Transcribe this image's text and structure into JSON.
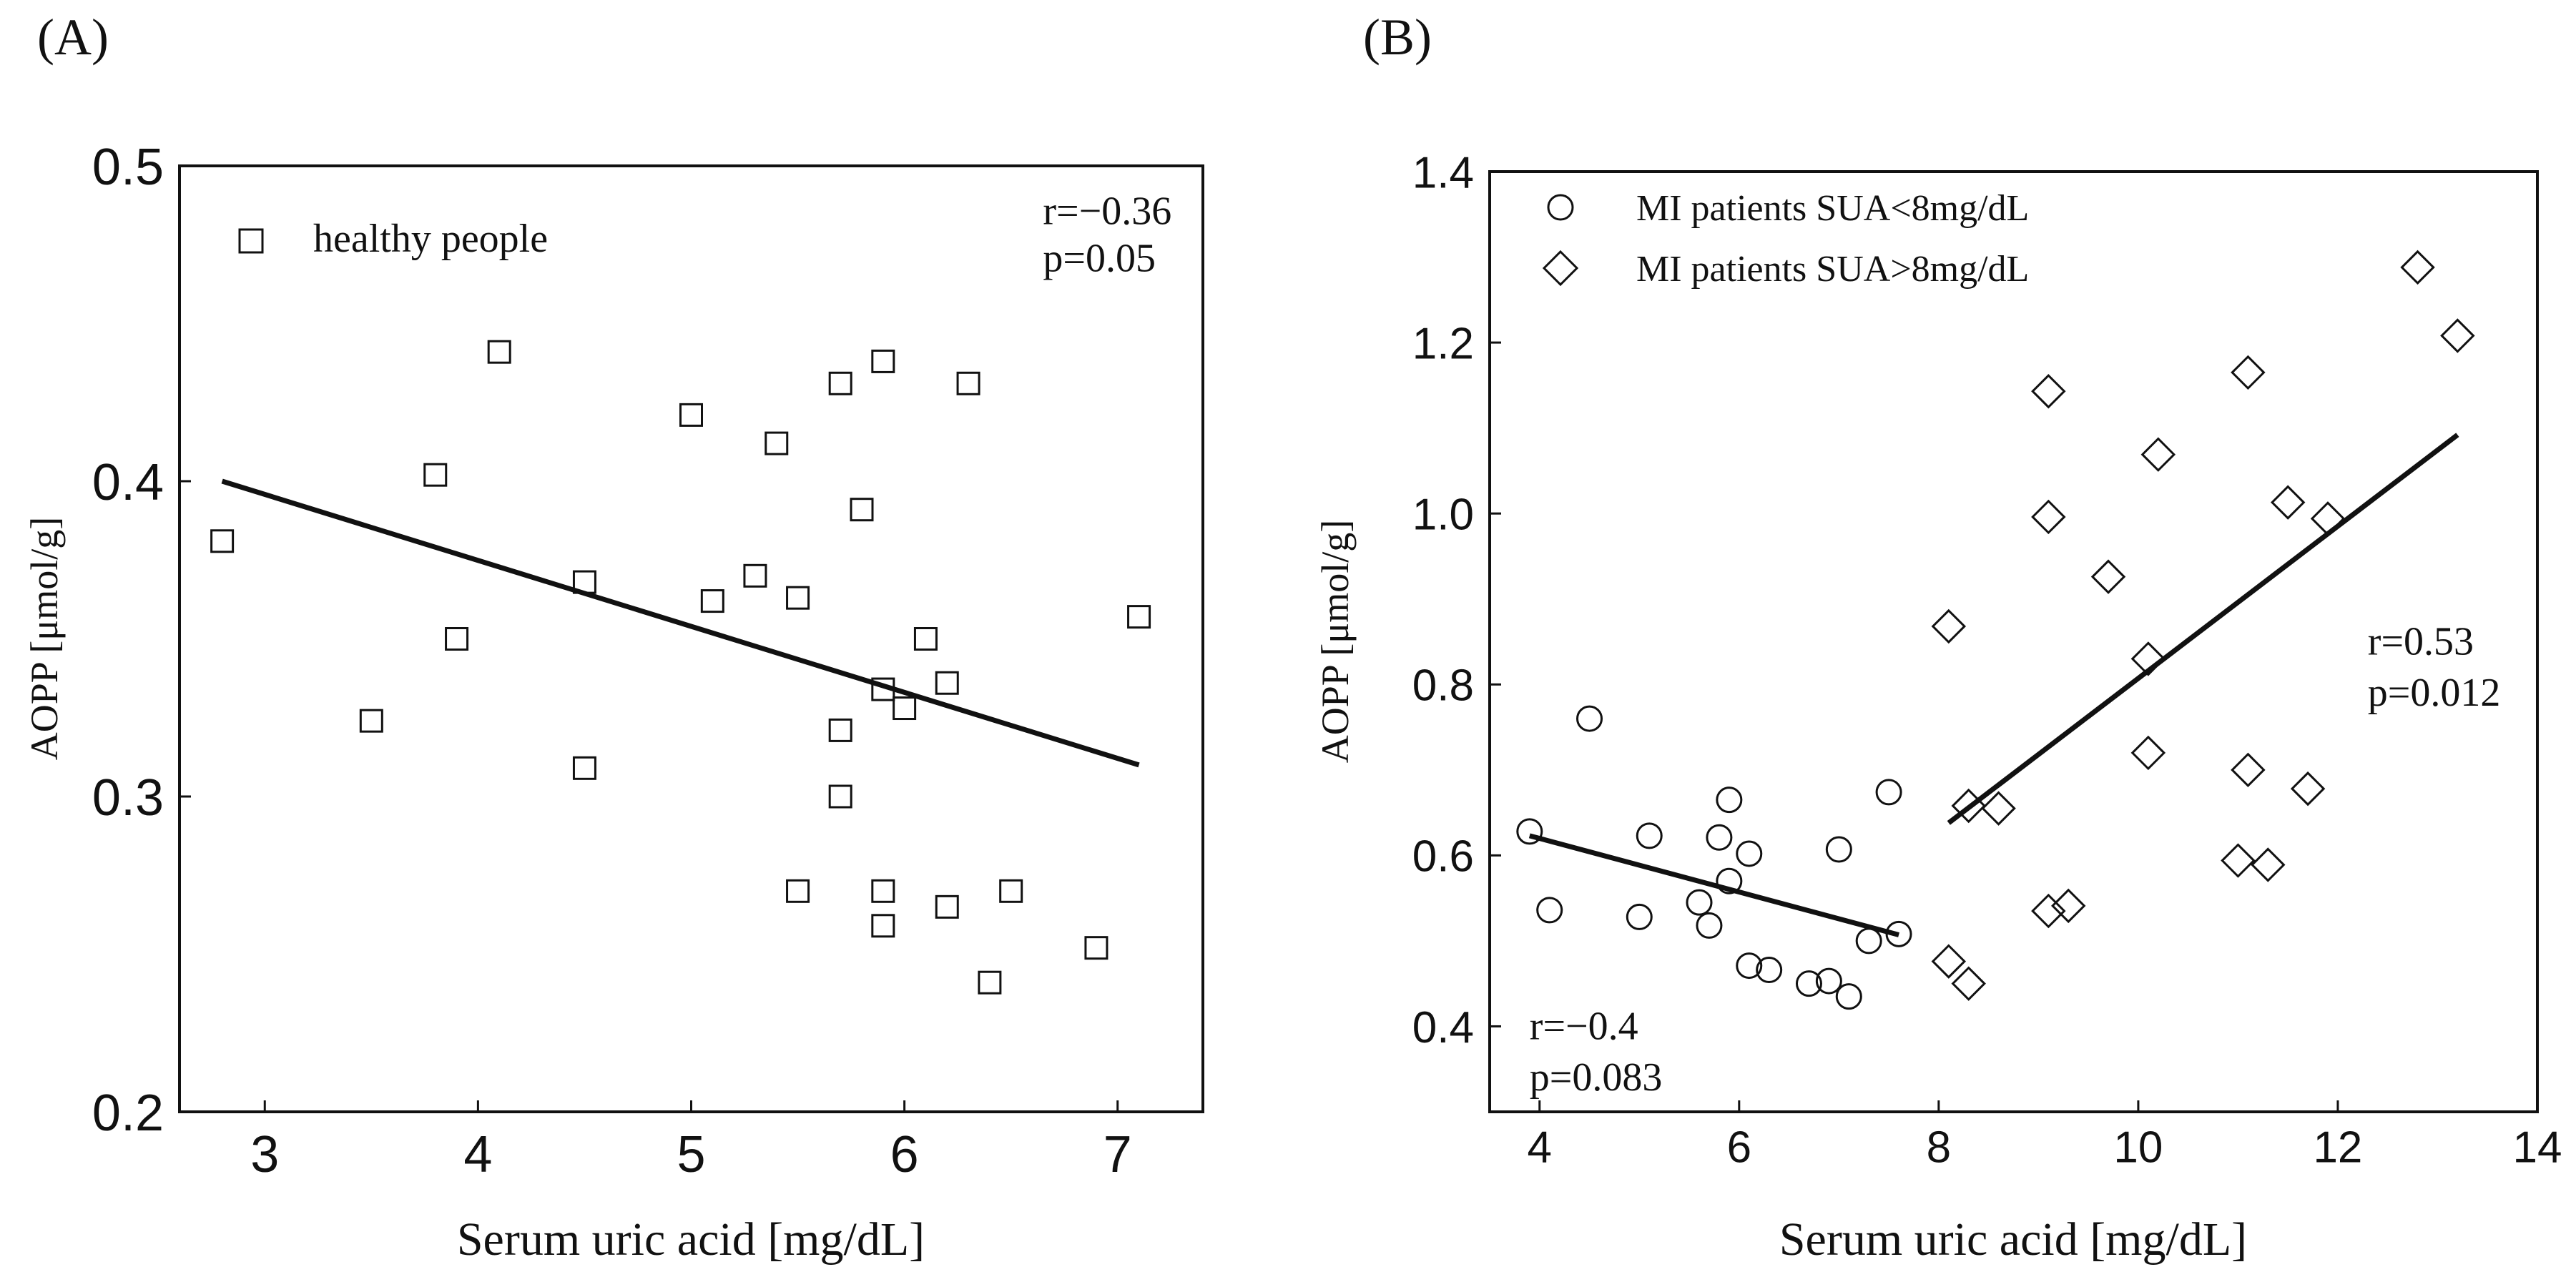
{
  "chart_data": [
    {
      "id": "A",
      "type": "scatter",
      "panel_label": "(A)",
      "xlabel": "Serum uric acid [mg/dL]",
      "ylabel": "AOPP [μmol/g]",
      "xlim": [
        2.6,
        7.4
      ],
      "ylim": [
        0.2,
        0.5
      ],
      "xticks": [
        3,
        4,
        5,
        6,
        7
      ],
      "yticks": [
        0.2,
        0.3,
        0.4,
        0.5
      ],
      "xtick_labels": [
        "3",
        "4",
        "5",
        "6",
        "7"
      ],
      "ytick_labels": [
        "0.2",
        "0.3",
        "0.4",
        "0.5"
      ],
      "legend_position": "top-left",
      "annotations": [
        {
          "text": "r=−0.36",
          "x": 6.65,
          "y": 0.4815
        },
        {
          "text": "p=0.05",
          "x": 6.65,
          "y": 0.4665
        }
      ],
      "series": [
        {
          "name": "healthy people",
          "marker": "square",
          "points": [
            [
              2.8,
              0.381
            ],
            [
              3.5,
              0.324
            ],
            [
              3.8,
              0.402
            ],
            [
              3.9,
              0.35
            ],
            [
              4.1,
              0.441
            ],
            [
              4.5,
              0.368
            ],
            [
              4.5,
              0.309
            ],
            [
              5.0,
              0.421
            ],
            [
              5.1,
              0.362
            ],
            [
              5.3,
              0.37
            ],
            [
              5.4,
              0.412
            ],
            [
              5.5,
              0.363
            ],
            [
              5.5,
              0.27
            ],
            [
              5.7,
              0.431
            ],
            [
              5.7,
              0.321
            ],
            [
              5.7,
              0.3
            ],
            [
              5.8,
              0.391
            ],
            [
              5.9,
              0.438
            ],
            [
              5.9,
              0.334
            ],
            [
              5.9,
              0.27
            ],
            [
              5.9,
              0.259
            ],
            [
              6.0,
              0.328
            ],
            [
              6.1,
              0.35
            ],
            [
              6.2,
              0.336
            ],
            [
              6.2,
              0.265
            ],
            [
              6.3,
              0.431
            ],
            [
              6.4,
              0.241
            ],
            [
              6.5,
              0.27
            ],
            [
              6.9,
              0.252
            ],
            [
              7.1,
              0.357
            ]
          ],
          "fit_line": [
            [
              2.8,
              0.4
            ],
            [
              7.1,
              0.31
            ]
          ]
        }
      ]
    },
    {
      "id": "B",
      "type": "scatter",
      "panel_label": "(B)",
      "xlabel": "Serum uric acid [mg/dL]",
      "ylabel": "AOPP [μmol/g]",
      "xlim": [
        3.5,
        14
      ],
      "ylim": [
        0.3,
        1.4
      ],
      "xticks": [
        4,
        6,
        8,
        10,
        12,
        14
      ],
      "yticks": [
        0.4,
        0.6,
        0.8,
        1.0,
        1.2,
        1.4
      ],
      "xtick_labels": [
        "4",
        "6",
        "8",
        "10",
        "12",
        "14"
      ],
      "ytick_labels": [
        "0.4",
        "0.6",
        "0.8",
        "1.0",
        "1.2",
        "1.4"
      ],
      "legend_position": "top-left",
      "annotations": [
        {
          "text": "r=0.53",
          "x": 12.3,
          "y": 0.835
        },
        {
          "text": "p=0.012",
          "x": 12.3,
          "y": 0.775
        },
        {
          "text": "r=−0.4",
          "x": 3.9,
          "y": 0.385
        },
        {
          "text": "p=0.083",
          "x": 3.9,
          "y": 0.325
        }
      ],
      "series": [
        {
          "name": "MI patients SUA<8mg/dL",
          "marker": "circle",
          "points": [
            [
              3.9,
              0.628
            ],
            [
              4.1,
              0.536
            ],
            [
              4.5,
              0.76
            ],
            [
              5.0,
              0.528
            ],
            [
              5.1,
              0.623
            ],
            [
              5.6,
              0.545
            ],
            [
              5.7,
              0.518
            ],
            [
              5.8,
              0.621
            ],
            [
              5.9,
              0.665
            ],
            [
              5.9,
              0.57
            ],
            [
              6.1,
              0.602
            ],
            [
              6.1,
              0.471
            ],
            [
              6.3,
              0.466
            ],
            [
              6.7,
              0.45
            ],
            [
              6.9,
              0.453
            ],
            [
              7.0,
              0.607
            ],
            [
              7.1,
              0.435
            ],
            [
              7.3,
              0.5
            ],
            [
              7.5,
              0.674
            ],
            [
              7.6,
              0.508
            ]
          ],
          "fit_line": [
            [
              3.9,
              0.623
            ],
            [
              7.6,
              0.507
            ]
          ]
        },
        {
          "name": "MI patients SUA>8mg/dL",
          "marker": "diamond",
          "points": [
            [
              8.1,
              0.868
            ],
            [
              8.1,
              0.476
            ],
            [
              8.3,
              0.658
            ],
            [
              8.3,
              0.45
            ],
            [
              8.6,
              0.655
            ],
            [
              9.1,
              1.143
            ],
            [
              9.1,
              0.996
            ],
            [
              9.1,
              0.535
            ],
            [
              9.3,
              0.541
            ],
            [
              9.7,
              0.926
            ],
            [
              10.1,
              0.83
            ],
            [
              10.1,
              0.72
            ],
            [
              10.2,
              1.069
            ],
            [
              11.0,
              0.594
            ],
            [
              11.1,
              1.165
            ],
            [
              11.1,
              0.7
            ],
            [
              11.3,
              0.589
            ],
            [
              11.5,
              1.013
            ],
            [
              11.7,
              0.678
            ],
            [
              11.9,
              0.994
            ],
            [
              12.8,
              1.288
            ],
            [
              13.2,
              1.208
            ]
          ],
          "fit_line": [
            [
              8.1,
              0.638
            ],
            [
              13.2,
              1.092
            ]
          ]
        }
      ]
    }
  ]
}
